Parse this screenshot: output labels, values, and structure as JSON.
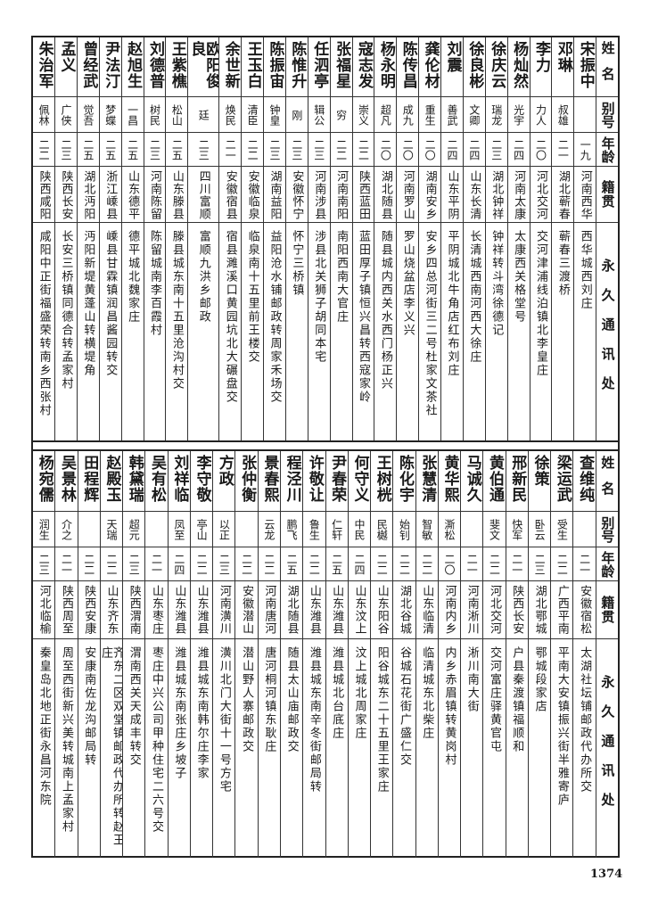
{
  "header": {
    "name": "姓名",
    "alias": "别号",
    "age": "年龄",
    "origin": "籍贯",
    "address": "永久通讯处"
  },
  "top_table": [
    {
      "name": "宋振中",
      "alias": "",
      "age": "一九",
      "origin": "河南西华",
      "address": "西华城西刘庄"
    },
    {
      "name": "邓琳",
      "alias": "叔雄",
      "age": "二一",
      "origin": "湖北蕲春",
      "address": "蕲春三渡桥"
    },
    {
      "name": "李力",
      "alias": "力人",
      "age": "二〇",
      "origin": "河北交河",
      "address": "交河津浦线泊镇北李皇庄"
    },
    {
      "name": "杨灿然",
      "alias": "光宇",
      "age": "二四",
      "origin": "河南太康",
      "address": "太康西关格堂号"
    },
    {
      "name": "徐庆云",
      "alias": "瑞龙",
      "age": "二三",
      "origin": "湖北钟祥",
      "address": "钟祥转斗湾徐德记"
    },
    {
      "name": "徐良彬",
      "alias": "文卿",
      "age": "二四",
      "origin": "山东长清",
      "address": "长清城西南河西大徐庄"
    },
    {
      "name": "刘震",
      "alias": "善武",
      "age": "二四",
      "origin": "山东平阴",
      "address": "平阴城北牛角店红布刘庄"
    },
    {
      "name": "龚伦材",
      "alias": "重生",
      "age": "二〇",
      "origin": "湖南安乡",
      "address": "安乡四总河街三二号杜家文茶社"
    },
    {
      "name": "陈传昌",
      "alias": "成九",
      "age": "二〇",
      "origin": "河南罗山",
      "address": "罗山烧盆店李义兴"
    },
    {
      "name": "杨永明",
      "alias": "超凡",
      "age": "二〇",
      "origin": "湖北随县",
      "address": "随县城内西关水西门杨正兴"
    },
    {
      "name": "寇志发",
      "alias": "崇义",
      "age": "二二",
      "origin": "陕西蓝田",
      "address": "蓝田厚子镇恒兴昌转西寇家岭"
    },
    {
      "name": "张福星",
      "alias": "穷",
      "age": "二二",
      "origin": "河南南阳",
      "address": "南阳西南大官庄"
    },
    {
      "name": "任泗亭",
      "alias": "辑公",
      "age": "二三",
      "origin": "河南涉县",
      "address": "涉县北关狮子胡同本宅"
    },
    {
      "name": "陈惟升",
      "alias": "刚",
      "age": "二三",
      "origin": "安徽怀宁",
      "address": "怀宁三桥镇"
    },
    {
      "name": "陈振宙",
      "alias": "钟皇",
      "age": "二三",
      "origin": "湖南益阳",
      "address": "益阳沧水铺邮政转周家禾场交"
    },
    {
      "name": "王玉白",
      "alias": "清臣",
      "age": "二二",
      "origin": "安徽临泉",
      "address": "临泉南十五里前王楼交"
    },
    {
      "name": "余世新",
      "alias": "焕民",
      "age": "二一",
      "origin": "安徽宿县",
      "address": "宿县濉溪口黄园坑北大碾盘交"
    },
    {
      "name": "欧阳俊良",
      "alias": "廷",
      "age": "二三",
      "origin": "四川富顺",
      "address": "富顺九洪乡邮政"
    },
    {
      "name": "王紫樵",
      "alias": "松山",
      "age": "二五",
      "origin": "山东滕县",
      "address": "滕县城东南十五里沧沟村交"
    },
    {
      "name": "刘德普",
      "alias": "树民",
      "age": "二三",
      "origin": "河南陈留",
      "address": "陈留城南李百霞村"
    },
    {
      "name": "赵旭生",
      "alias": "一昌",
      "age": "二五",
      "origin": "山东德平",
      "address": "德平城北魏家庄"
    },
    {
      "name": "尹法汀",
      "alias": "梦蝶",
      "age": "二五",
      "origin": "浙江嵊县",
      "address": "嵊县甘霖镇润昌酱园转交"
    },
    {
      "name": "曾经武",
      "alias": "觉吾",
      "age": "二五",
      "origin": "湖北沔阳",
      "address": "沔阳新堤黄蓬山转横堤角"
    },
    {
      "name": "孟义",
      "alias": "广侠",
      "age": "二三",
      "origin": "陕西长安",
      "address": "长安三桥镇同德合转孟家村"
    },
    {
      "name": "朱治军",
      "alias": "佩林",
      "age": "二二",
      "origin": "陕西咸阳",
      "address": "咸阳中正街福盛荣转南乡西张村"
    }
  ],
  "bottom_table": [
    {
      "name": "查维纯",
      "alias": "",
      "age": "二一",
      "origin": "安徽宿松",
      "address": "太湖社坛铺邮政代办所交"
    },
    {
      "name": "梁运武",
      "alias": "受生",
      "age": "二二",
      "origin": "广西平南",
      "address": "平南大安镇振兴街半雅寄庐"
    },
    {
      "name": "徐策",
      "alias": "卧云",
      "age": "二三",
      "origin": "湖北鄂城",
      "address": "鄂城段家店"
    },
    {
      "name": "邢新民",
      "alias": "快军",
      "age": "二一",
      "origin": "陕西长安",
      "address": "户县秦渡镇福顺和"
    },
    {
      "name": "黄伯通",
      "alias": "斐文",
      "age": "二二",
      "origin": "河北交河",
      "address": "交河富庄驿黄官屯"
    },
    {
      "name": "马诚久",
      "alias": "",
      "age": "二一",
      "origin": "河南淅川",
      "address": "淅川南大街"
    },
    {
      "name": "黄华熙",
      "alias": "澌松",
      "age": "二〇",
      "origin": "河南内乡",
      "address": "内乡赤眉镇转黄岗村"
    },
    {
      "name": "张慧清",
      "alias": "智敏",
      "age": "二二",
      "origin": "山东临清",
      "address": "临清城东北柴庄"
    },
    {
      "name": "陈化宇",
      "alias": "始钊",
      "age": "二二",
      "origin": "湖北谷城",
      "address": "谷城石花街广盛仁交"
    },
    {
      "name": "王树桄",
      "alias": "民樾",
      "age": "二二",
      "origin": "山东阳谷",
      "address": "阳谷城东二十五里王家庄"
    },
    {
      "name": "何守义",
      "alias": "中民",
      "age": "二四",
      "origin": "山东汶上",
      "address": "汶上城北周家庄"
    },
    {
      "name": "尹春荣",
      "alias": "仁轩",
      "age": "二五",
      "origin": "山东潍县",
      "address": "潍县城北台底庄"
    },
    {
      "name": "许敬让",
      "alias": "鲁生",
      "age": "二二",
      "origin": "山东潍县",
      "address": "潍县城东南辛冬街邮局转"
    },
    {
      "name": "程泾川",
      "alias": "鹏飞",
      "age": "二五",
      "origin": "湖北随县",
      "address": "随县太山庙邮政交"
    },
    {
      "name": "景春熙",
      "alias": "云龙",
      "age": "二二",
      "origin": "河南唐河",
      "address": "唐河桐河镇东耿庄"
    },
    {
      "name": "张仲衡",
      "alias": "",
      "age": "二二",
      "origin": "安徽潜山",
      "address": "潜山野人寨邮政交"
    },
    {
      "name": "方政",
      "alias": "以正",
      "age": "二三",
      "origin": "河南潢川",
      "address": "潢川北门大街十一号方宅"
    },
    {
      "name": "李守敬",
      "alias": "亭山",
      "age": "二二",
      "origin": "山东潍县",
      "address": "潍县城东南韩尔庄李家"
    },
    {
      "name": "刘祥临",
      "alias": "凤至",
      "age": "二四",
      "origin": "山东潍县",
      "address": "潍县城东南张庄乡坡子"
    },
    {
      "name": "吴有松",
      "alias": "",
      "age": "二一",
      "origin": "山东枣庄",
      "address": "枣庄中兴公司甲种住宅二六号交"
    },
    {
      "name": "韩黛瑞",
      "alias": "超元",
      "age": "二三",
      "origin": "陕西渭南",
      "address": "渭南西关天成丰转交"
    },
    {
      "name": "赵殿玉",
      "alias": "天瑞",
      "age": "二二",
      "origin": "山东齐东",
      "address": "齐东二区双堂镇邮政代办所转赵王庄"
    },
    {
      "name": "田程辉",
      "alias": "",
      "age": "二二",
      "origin": "陕西安康",
      "address": "安康南佐龙沟邮局转"
    },
    {
      "name": "吴景林",
      "alias": "介之",
      "age": "二一",
      "origin": "陕西周至",
      "address": "周至西街新兴美转城南上孟家村"
    },
    {
      "name": "杨宛儒",
      "alias": "润生",
      "age": "二三",
      "origin": "河北临榆",
      "address": "秦皇岛北地正街永昌河东院"
    }
  ],
  "page_number": "1374"
}
